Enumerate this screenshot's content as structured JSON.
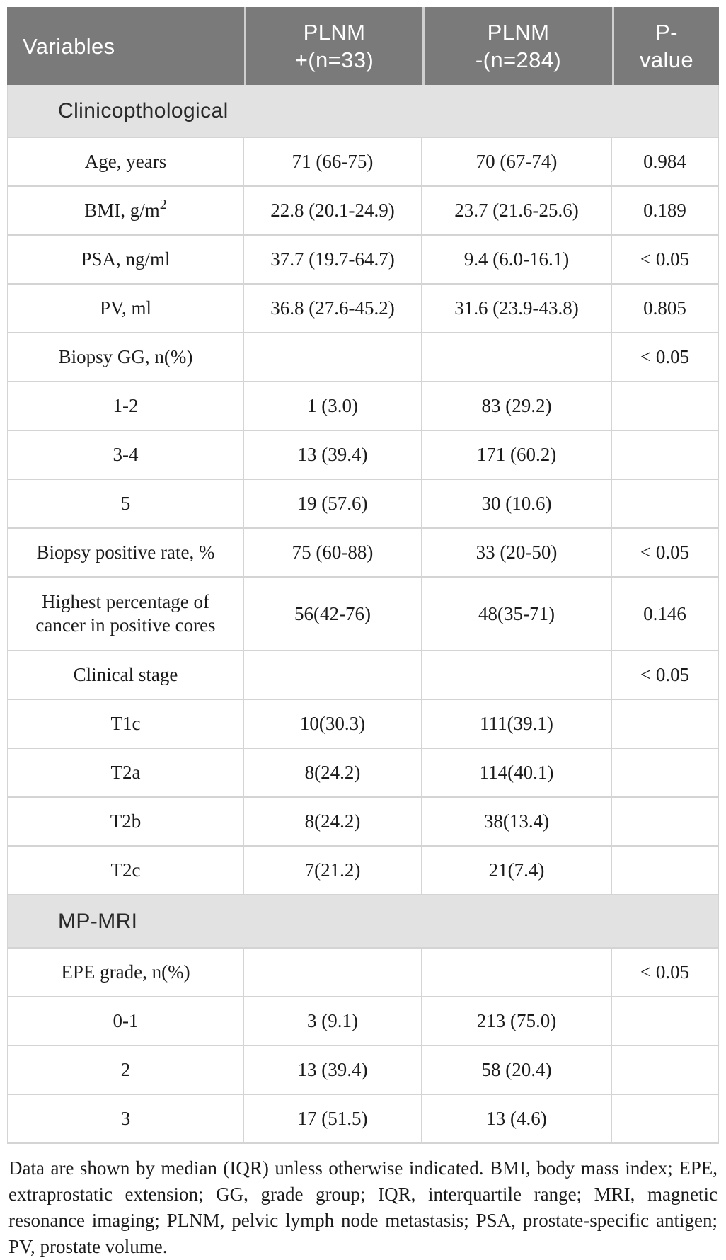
{
  "colors": {
    "header_bg": "#7a7a7a",
    "header_text": "#ffffff",
    "section_bg": "#e2e2e2",
    "border": "#d4d4d4",
    "body_text": "#1b1b1b"
  },
  "table": {
    "header": {
      "variables": "Variables",
      "plnm_pos": {
        "line1": "PLNM",
        "line2": "+(n=33)"
      },
      "plnm_neg": {
        "line1": "PLNM",
        "line2": "-(n=284)"
      },
      "p_value": {
        "line1": "P-",
        "line2": "value"
      }
    },
    "rows": [
      {
        "type": "section",
        "label": "Clinicopthological"
      },
      {
        "type": "data",
        "cells": [
          "Age, years",
          "71 (66-75)",
          "70 (67-74)",
          "0.984"
        ]
      },
      {
        "type": "data",
        "cells": [
          "BMI, g/m",
          "22.8 (20.1-24.9)",
          "23.7 (21.6-25.6)",
          "0.189"
        ],
        "sup": "2"
      },
      {
        "type": "data",
        "cells": [
          "PSA, ng/ml",
          "37.7 (19.7-64.7)",
          "9.4 (6.0-16.1)",
          "< 0.05"
        ]
      },
      {
        "type": "data",
        "cells": [
          "PV, ml",
          "36.8 (27.6-45.2)",
          "31.6 (23.9-43.8)",
          "0.805"
        ]
      },
      {
        "type": "data",
        "cells": [
          "Biopsy GG, n(%)",
          "",
          "",
          "< 0.05"
        ]
      },
      {
        "type": "data",
        "cells": [
          "1-2",
          "1 (3.0)",
          "83 (29.2)",
          ""
        ]
      },
      {
        "type": "data",
        "cells": [
          "3-4",
          "13 (39.4)",
          "171 (60.2)",
          ""
        ]
      },
      {
        "type": "data",
        "cells": [
          "5",
          "19 (57.6)",
          "30 (10.6)",
          ""
        ]
      },
      {
        "type": "data",
        "cells": [
          "Biopsy positive rate, %",
          "75 (60-88)",
          "33 (20-50)",
          "< 0.05"
        ]
      },
      {
        "type": "data",
        "cells": [
          "Highest percentage of cancer in positive cores",
          "56(42-76)",
          "48(35-71)",
          "0.146"
        ]
      },
      {
        "type": "data",
        "cells": [
          "Clinical stage",
          "",
          "",
          "< 0.05"
        ]
      },
      {
        "type": "data",
        "cells": [
          "T1c",
          "10(30.3)",
          "111(39.1)",
          ""
        ]
      },
      {
        "type": "data",
        "cells": [
          "T2a",
          "8(24.2)",
          "114(40.1)",
          ""
        ]
      },
      {
        "type": "data",
        "cells": [
          "T2b",
          "8(24.2)",
          "38(13.4)",
          ""
        ]
      },
      {
        "type": "data",
        "cells": [
          "T2c",
          "7(21.2)",
          "21(7.4)",
          ""
        ]
      },
      {
        "type": "section",
        "label": "MP-MRI"
      },
      {
        "type": "data",
        "cells": [
          "EPE grade, n(%)",
          "",
          "",
          "< 0.05"
        ]
      },
      {
        "type": "data",
        "cells": [
          "0-1",
          "3 (9.1)",
          "213 (75.0)",
          ""
        ]
      },
      {
        "type": "data",
        "cells": [
          "2",
          "13 (39.4)",
          "58 (20.4)",
          ""
        ]
      },
      {
        "type": "data",
        "cells": [
          "3",
          "17 (51.5)",
          "13 (4.6)",
          ""
        ]
      }
    ]
  },
  "footnote": {
    "text": "Data are shown by median (IQR) unless otherwise indicated. BMI, body mass index; EPE, extraprostatic extension; GG, grade group; IQR, interquartile range; MRI, magnetic resonance imaging; PLNM, pelvic lymph node metastasis; PSA, prostate-specific antigen; PV, prostate volume."
  }
}
